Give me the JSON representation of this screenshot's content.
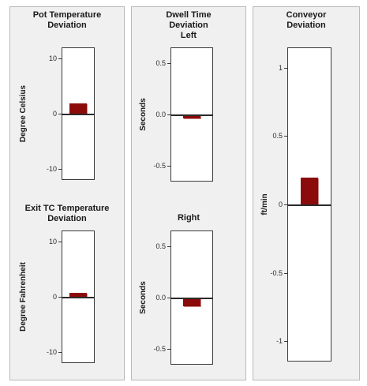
{
  "panels": {
    "pot": {
      "title_line1": "Pot Temperature",
      "title_line2": "Deviation"
    },
    "dwell": {
      "title_line1": "Dwell Time",
      "title_line2": "Deviation",
      "title_line3": "Left"
    },
    "conveyor": {
      "title_line1": "Conveyor",
      "title_line2": "Deviation"
    }
  },
  "chart_data": [
    {
      "type": "bar",
      "title": "Pot Temperature Deviation",
      "ylabel": "Degree Celsius",
      "ylim": [
        -12,
        12
      ],
      "ticks": [
        "10",
        "0",
        "-10"
      ],
      "tick_values": [
        10,
        0,
        -10
      ],
      "values": [
        2.0
      ],
      "bar_color": "#8b0b0b"
    },
    {
      "type": "bar",
      "title": "Exit TC Temperature Deviation",
      "title_line1": "Exit TC Temperature",
      "title_line2": "Deviation",
      "ylabel": "Degree Fahrenheit",
      "ylim": [
        -12,
        12
      ],
      "ticks": [
        "10",
        "0",
        "-10"
      ],
      "tick_values": [
        10,
        0,
        -10
      ],
      "values": [
        0.8
      ],
      "bar_color": "#8b0b0b"
    },
    {
      "type": "bar",
      "title": "Left",
      "ylabel": "Seconds",
      "ylim": [
        -0.65,
        0.65
      ],
      "ticks": [
        "0.5",
        "0.0",
        "-0.5"
      ],
      "tick_values": [
        0.5,
        0,
        -0.5
      ],
      "values": [
        -0.03
      ],
      "bar_color": "#8b0b0b"
    },
    {
      "type": "bar",
      "title": "Right",
      "ylabel": "Seconds",
      "ylim": [
        -0.65,
        0.65
      ],
      "ticks": [
        "0.5",
        "0.0",
        "-0.5"
      ],
      "tick_values": [
        0.5,
        0,
        -0.5
      ],
      "values": [
        -0.08
      ],
      "bar_color": "#8b0b0b"
    },
    {
      "type": "bar",
      "title": "Conveyor Deviation",
      "ylabel": "ft/min",
      "ylim": [
        -1.15,
        1.15
      ],
      "ticks": [
        "1",
        "0.5",
        "0",
        "-0.5",
        "-1"
      ],
      "tick_values": [
        1,
        0.5,
        0,
        -0.5,
        -1
      ],
      "values": [
        0.2
      ],
      "bar_color": "#8b0b0b"
    }
  ]
}
